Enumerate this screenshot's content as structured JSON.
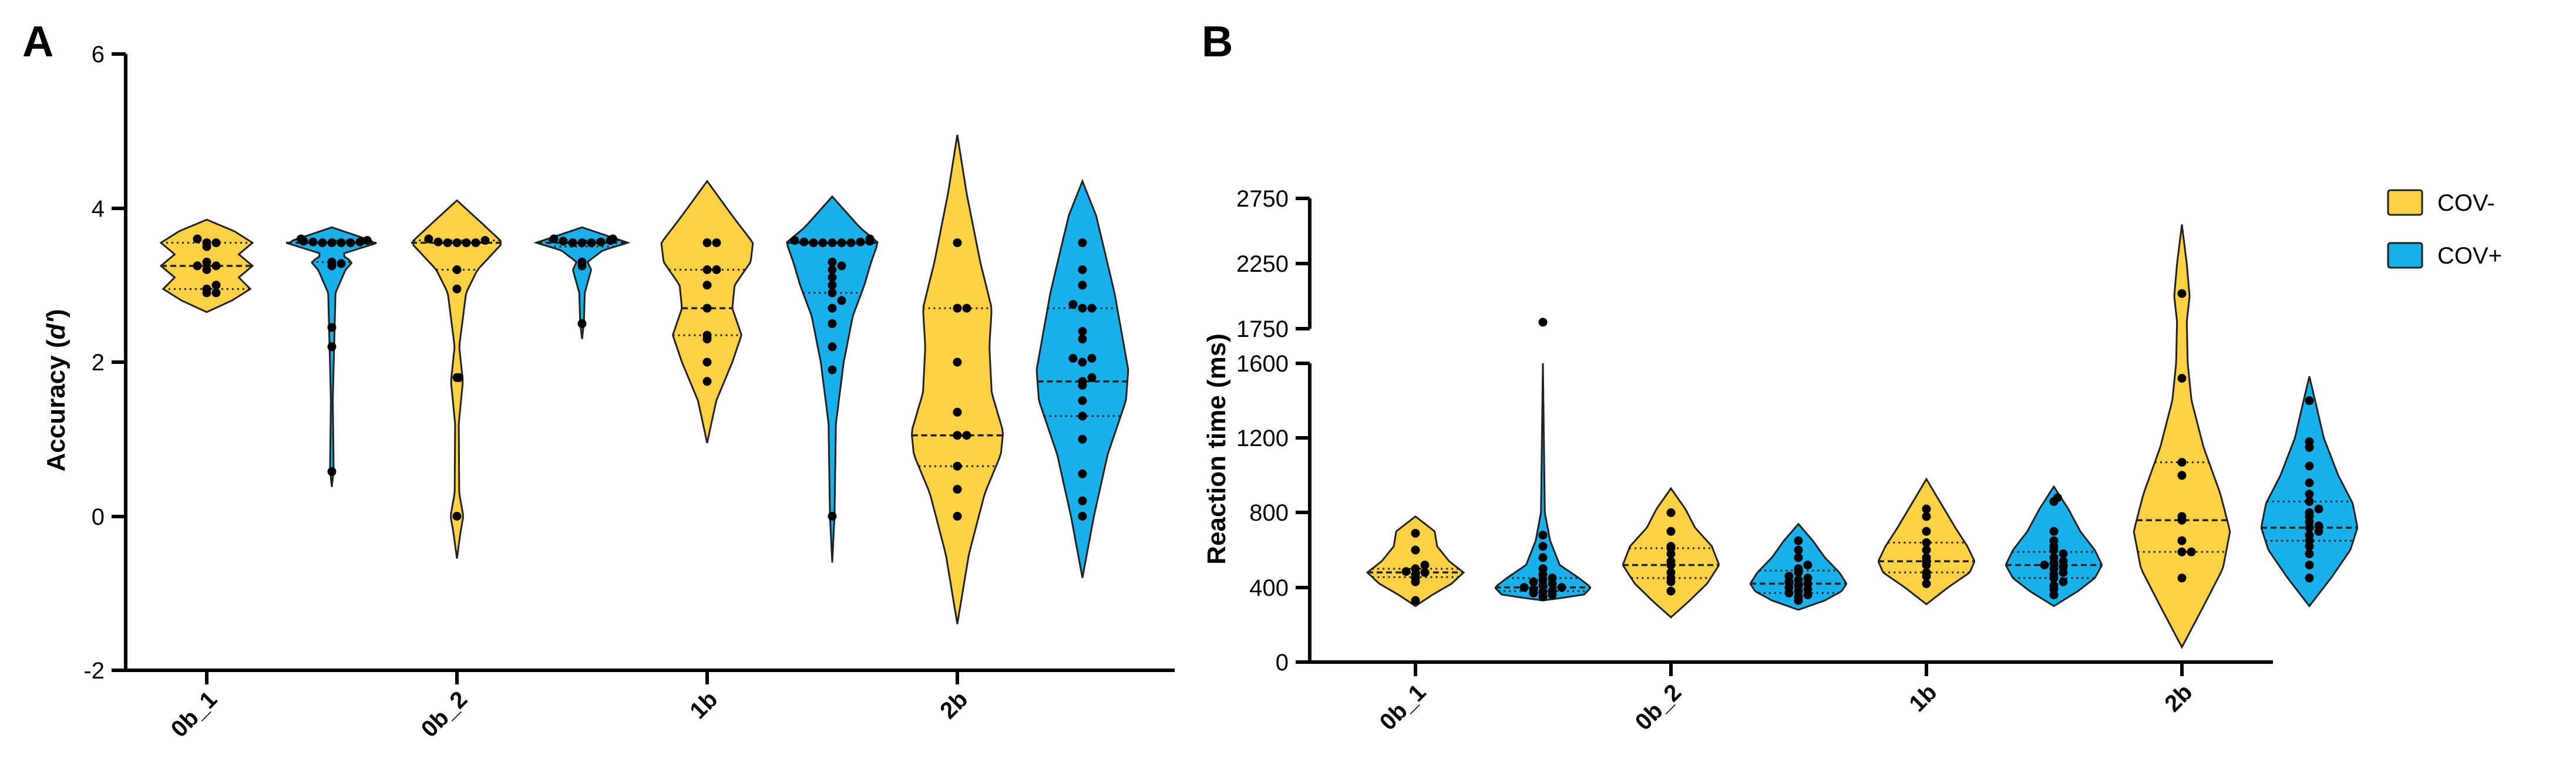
{
  "colors": {
    "cov_neg": "#FFD145",
    "cov_pos": "#1AB0EA"
  },
  "legend": [
    {
      "label": "COV-",
      "color": "#FFD145"
    },
    {
      "label": "COV+",
      "color": "#1AB0EA"
    }
  ],
  "chart_data": [
    {
      "panel_label": "A",
      "type": "violin",
      "ylabel_main": "Accuracy (",
      "ylabel_italic": "d'",
      "ylabel_close": ")",
      "ylim": [
        -2,
        6
      ],
      "yticks": [
        -2,
        0,
        2,
        4,
        6
      ],
      "yticklabels": [
        "-2",
        "0",
        "2",
        "4",
        "6"
      ],
      "xticklabels": [
        "0b_1",
        "0b_2",
        "1b",
        "2b"
      ],
      "groups": [
        {
          "cat": "0b_1",
          "series": "COV-",
          "min": 2.65,
          "max": 3.85,
          "median": 3.25,
          "q1": 2.95,
          "q3": 3.55,
          "shape": [
            [
              2.65,
              0.0
            ],
            [
              2.8,
              0.55
            ],
            [
              2.95,
              0.95
            ],
            [
              3.1,
              0.7
            ],
            [
              3.25,
              1.0
            ],
            [
              3.4,
              0.7
            ],
            [
              3.55,
              1.0
            ],
            [
              3.7,
              0.6
            ],
            [
              3.85,
              0.0
            ]
          ],
          "points": [
            2.9,
            2.9,
            2.95,
            3.0,
            3.2,
            3.25,
            3.25,
            3.3,
            3.5,
            3.55,
            3.55,
            3.6
          ]
        },
        {
          "cat": "0b_1",
          "series": "COV+",
          "min": 0.38,
          "max": 3.75,
          "median": 3.55,
          "q1": 3.3,
          "q3": 3.58,
          "shape": [
            [
              0.38,
              0.0
            ],
            [
              0.6,
              0.04
            ],
            [
              1.5,
              0.02
            ],
            [
              2.2,
              0.05
            ],
            [
              2.9,
              0.08
            ],
            [
              3.2,
              0.3
            ],
            [
              3.3,
              0.45
            ],
            [
              3.4,
              0.2
            ],
            [
              3.55,
              1.0
            ],
            [
              3.65,
              0.5
            ],
            [
              3.75,
              0.0
            ]
          ],
          "points": [
            0.58,
            2.2,
            2.45,
            3.25,
            3.28,
            3.3,
            3.55,
            3.55,
            3.55,
            3.55,
            3.56,
            3.56,
            3.57,
            3.58,
            3.6
          ]
        },
        {
          "cat": "0b_2",
          "series": "COV-",
          "min": -0.55,
          "max": 4.1,
          "median": 3.55,
          "q1": 3.2,
          "q3": 3.58,
          "shape": [
            [
              -0.55,
              0.0
            ],
            [
              -0.2,
              0.08
            ],
            [
              0.0,
              0.14
            ],
            [
              0.3,
              0.05
            ],
            [
              1.2,
              0.04
            ],
            [
              1.75,
              0.13
            ],
            [
              2.2,
              0.05
            ],
            [
              2.9,
              0.2
            ],
            [
              3.2,
              0.45
            ],
            [
              3.55,
              1.0
            ],
            [
              3.8,
              0.55
            ],
            [
              4.1,
              0.0
            ]
          ],
          "points": [
            0.0,
            1.8,
            1.8,
            2.95,
            3.2,
            3.55,
            3.55,
            3.55,
            3.55,
            3.56,
            3.58,
            3.6
          ]
        },
        {
          "cat": "0b_2",
          "series": "COV+",
          "min": 2.3,
          "max": 3.75,
          "median": 3.55,
          "q1": 3.5,
          "q3": 3.58,
          "shape": [
            [
              2.3,
              0.0
            ],
            [
              2.5,
              0.04
            ],
            [
              2.9,
              0.06
            ],
            [
              3.2,
              0.2
            ],
            [
              3.3,
              0.12
            ],
            [
              3.45,
              0.45
            ],
            [
              3.55,
              1.0
            ],
            [
              3.65,
              0.5
            ],
            [
              3.75,
              0.0
            ]
          ],
          "points": [
            2.5,
            3.25,
            3.3,
            3.55,
            3.55,
            3.55,
            3.56,
            3.57,
            3.58,
            3.6,
            3.6
          ]
        },
        {
          "cat": "1b",
          "series": "COV-",
          "min": 0.95,
          "max": 4.35,
          "median": 2.7,
          "q1": 2.35,
          "q3": 3.2,
          "shape": [
            [
              0.95,
              0.0
            ],
            [
              1.5,
              0.2
            ],
            [
              2.0,
              0.55
            ],
            [
              2.35,
              0.75
            ],
            [
              2.7,
              0.55
            ],
            [
              3.0,
              0.6
            ],
            [
              3.3,
              0.95
            ],
            [
              3.55,
              1.0
            ],
            [
              3.9,
              0.55
            ],
            [
              4.35,
              0.0
            ]
          ],
          "points": [
            1.75,
            2.0,
            2.3,
            2.35,
            2.7,
            3.0,
            3.2,
            3.2,
            3.55,
            3.55
          ]
        },
        {
          "cat": "1b",
          "series": "COV+",
          "min": -0.6,
          "max": 4.15,
          "median": 3.55,
          "q1": 2.9,
          "q3": 3.56,
          "shape": [
            [
              -0.6,
              0.0
            ],
            [
              0.0,
              0.05
            ],
            [
              1.2,
              0.08
            ],
            [
              2.0,
              0.25
            ],
            [
              2.6,
              0.45
            ],
            [
              3.0,
              0.7
            ],
            [
              3.3,
              0.85
            ],
            [
              3.55,
              1.0
            ],
            [
              3.75,
              0.6
            ],
            [
              4.15,
              0.0
            ]
          ],
          "points": [
            0.0,
            1.9,
            2.2,
            2.5,
            2.7,
            2.8,
            2.9,
            3.0,
            3.1,
            3.2,
            3.25,
            3.3,
            3.55,
            3.55,
            3.55,
            3.55,
            3.55,
            3.56,
            3.56,
            3.57,
            3.58,
            3.6
          ]
        },
        {
          "cat": "2b",
          "series": "COV-",
          "min": -1.4,
          "max": 4.95,
          "median": 1.05,
          "q1": 0.65,
          "q3": 2.7,
          "shape": [
            [
              -1.4,
              0.0
            ],
            [
              -0.5,
              0.25
            ],
            [
              0.3,
              0.6
            ],
            [
              0.8,
              0.95
            ],
            [
              1.1,
              1.0
            ],
            [
              1.6,
              0.75
            ],
            [
              2.2,
              0.7
            ],
            [
              2.7,
              0.75
            ],
            [
              3.3,
              0.5
            ],
            [
              4.2,
              0.2
            ],
            [
              4.95,
              0.0
            ]
          ],
          "points": [
            0.0,
            0.35,
            0.65,
            1.05,
            1.05,
            1.35,
            2.0,
            2.7,
            2.7,
            3.55
          ]
        },
        {
          "cat": "2b",
          "series": "COV+",
          "min": -0.8,
          "max": 4.35,
          "median": 1.75,
          "q1": 1.3,
          "q3": 2.7,
          "shape": [
            [
              -0.8,
              0.0
            ],
            [
              0.0,
              0.25
            ],
            [
              0.8,
              0.55
            ],
            [
              1.5,
              0.95
            ],
            [
              1.9,
              1.0
            ],
            [
              2.4,
              0.85
            ],
            [
              2.9,
              0.7
            ],
            [
              3.4,
              0.5
            ],
            [
              3.9,
              0.3
            ],
            [
              4.35,
              0.0
            ]
          ],
          "points": [
            0.0,
            0.2,
            0.55,
            1.0,
            1.3,
            1.5,
            1.7,
            1.75,
            1.8,
            2.0,
            2.05,
            2.05,
            2.3,
            2.4,
            2.7,
            2.7,
            2.75,
            3.0,
            3.2,
            3.55
          ]
        }
      ]
    },
    {
      "panel_label": "B",
      "type": "violin",
      "ylabel": "Reaction time (ms)",
      "ylim": [
        0,
        2750
      ],
      "axis_break": [
        1600,
        1750
      ],
      "yticks": [
        0,
        400,
        800,
        1200,
        1600,
        1750,
        2250,
        2750
      ],
      "yticklabels": [
        "0",
        "400",
        "800",
        "1200",
        "1600",
        "1750",
        "2250",
        "2750"
      ],
      "xticklabels": [
        "0b_1",
        "0b_2",
        "1b",
        "2b"
      ],
      "groups": [
        {
          "cat": "0b_1",
          "series": "COV-",
          "min": 300,
          "max": 780,
          "median": 480,
          "q1": 455,
          "q3": 500,
          "shape": [
            [
              300,
              0.0
            ],
            [
              360,
              0.35
            ],
            [
              420,
              0.75
            ],
            [
              480,
              1.0
            ],
            [
              540,
              0.7
            ],
            [
              620,
              0.45
            ],
            [
              700,
              0.4
            ],
            [
              780,
              0.0
            ]
          ],
          "points": [
            330,
            430,
            450,
            470,
            480,
            485,
            500,
            520,
            600,
            690
          ]
        },
        {
          "cat": "0b_1",
          "series": "COV+",
          "min": 330,
          "max": 1600,
          "median": 400,
          "q1": 380,
          "q3": 450,
          "shape": [
            [
              330,
              0.0
            ],
            [
              360,
              0.85
            ],
            [
              400,
              1.0
            ],
            [
              450,
              0.75
            ],
            [
              520,
              0.35
            ],
            [
              650,
              0.15
            ],
            [
              800,
              0.04
            ],
            [
              1200,
              0.02
            ],
            [
              1600,
              0.0
            ]
          ],
          "points": [
            350,
            360,
            370,
            375,
            380,
            390,
            400,
            400,
            410,
            420,
            430,
            440,
            450,
            470,
            500,
            560,
            620,
            680,
            1800
          ]
        },
        {
          "cat": "0b_2",
          "series": "COV-",
          "min": 240,
          "max": 930,
          "median": 520,
          "q1": 450,
          "q3": 610,
          "shape": [
            [
              240,
              0.0
            ],
            [
              320,
              0.35
            ],
            [
              420,
              0.75
            ],
            [
              520,
              1.0
            ],
            [
              620,
              0.85
            ],
            [
              720,
              0.5
            ],
            [
              820,
              0.3
            ],
            [
              930,
              0.0
            ]
          ],
          "points": [
            380,
            430,
            450,
            480,
            520,
            540,
            580,
            610,
            620,
            700,
            800
          ]
        },
        {
          "cat": "0b_2",
          "series": "COV+",
          "min": 280,
          "max": 740,
          "median": 420,
          "q1": 370,
          "q3": 490,
          "shape": [
            [
              280,
              0.0
            ],
            [
              330,
              0.55
            ],
            [
              380,
              0.9
            ],
            [
              420,
              1.0
            ],
            [
              480,
              0.85
            ],
            [
              560,
              0.55
            ],
            [
              650,
              0.3
            ],
            [
              740,
              0.0
            ]
          ],
          "points": [
            330,
            350,
            360,
            370,
            380,
            390,
            400,
            410,
            420,
            430,
            440,
            450,
            460,
            480,
            500,
            520,
            560,
            600,
            650
          ]
        },
        {
          "cat": "1b",
          "series": "COV-",
          "min": 310,
          "max": 980,
          "median": 540,
          "q1": 480,
          "q3": 640,
          "shape": [
            [
              310,
              0.0
            ],
            [
              400,
              0.45
            ],
            [
              480,
              0.9
            ],
            [
              540,
              1.0
            ],
            [
              620,
              0.85
            ],
            [
              720,
              0.6
            ],
            [
              850,
              0.3
            ],
            [
              980,
              0.0
            ]
          ],
          "points": [
            420,
            460,
            480,
            520,
            540,
            560,
            600,
            640,
            700,
            780,
            820
          ]
        },
        {
          "cat": "1b",
          "series": "COV+",
          "min": 300,
          "max": 940,
          "median": 520,
          "q1": 450,
          "q3": 590,
          "shape": [
            [
              300,
              0.0
            ],
            [
              380,
              0.5
            ],
            [
              450,
              0.85
            ],
            [
              520,
              1.0
            ],
            [
              600,
              0.85
            ],
            [
              700,
              0.55
            ],
            [
              820,
              0.3
            ],
            [
              940,
              0.0
            ]
          ],
          "points": [
            360,
            390,
            410,
            430,
            450,
            470,
            480,
            500,
            510,
            520,
            530,
            540,
            560,
            580,
            600,
            620,
            650,
            700,
            860,
            880
          ]
        },
        {
          "cat": "2b",
          "series": "COV-",
          "min": 80,
          "max": 2550,
          "median": 760,
          "q1": 590,
          "q3": 1070,
          "shape": [
            [
              80,
              0.0
            ],
            [
              300,
              0.45
            ],
            [
              500,
              0.85
            ],
            [
              700,
              1.0
            ],
            [
              900,
              0.8
            ],
            [
              1150,
              0.45
            ],
            [
              1400,
              0.2
            ],
            [
              1600,
              0.12
            ],
            [
              1800,
              0.1
            ],
            [
              2000,
              0.16
            ],
            [
              2250,
              0.1
            ],
            [
              2550,
              0.0
            ]
          ],
          "points": [
            450,
            590,
            590,
            650,
            760,
            780,
            1000,
            1070,
            1520,
            2020
          ]
        },
        {
          "cat": "2b",
          "series": "COV+",
          "min": 300,
          "max": 1530,
          "median": 720,
          "q1": 650,
          "q3": 860,
          "shape": [
            [
              300,
              0.0
            ],
            [
              450,
              0.45
            ],
            [
              600,
              0.85
            ],
            [
              720,
              1.0
            ],
            [
              850,
              0.9
            ],
            [
              1000,
              0.6
            ],
            [
              1200,
              0.3
            ],
            [
              1400,
              0.12
            ],
            [
              1530,
              0.0
            ]
          ],
          "points": [
            450,
            520,
            580,
            620,
            650,
            680,
            700,
            720,
            730,
            750,
            780,
            800,
            820,
            860,
            900,
            960,
            1050,
            1150,
            1180,
            1400
          ]
        }
      ]
    }
  ]
}
